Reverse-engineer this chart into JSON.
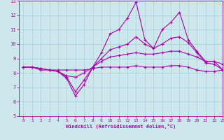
{
  "xlabel": "Windchill (Refroidissement éolien,°C)",
  "xlim": [
    -0.5,
    23
  ],
  "ylim": [
    5,
    13
  ],
  "xticks": [
    0,
    1,
    2,
    3,
    4,
    5,
    6,
    7,
    8,
    9,
    10,
    11,
    12,
    13,
    14,
    15,
    16,
    17,
    18,
    19,
    20,
    21,
    22,
    23
  ],
  "yticks": [
    5,
    6,
    7,
    8,
    9,
    10,
    11,
    12,
    13
  ],
  "background_color": "#cce8ec",
  "grid_color": "#aacfd4",
  "line_color": "#aa00aa",
  "series": [
    [
      8.4,
      8.4,
      8.2,
      8.2,
      8.1,
      7.6,
      6.4,
      7.2,
      8.4,
      9.4,
      10.7,
      11.0,
      11.8,
      12.9,
      10.3,
      9.7,
      11.0,
      11.5,
      12.2,
      10.3,
      9.5,
      8.8,
      8.8,
      8.2
    ],
    [
      8.4,
      8.4,
      8.3,
      8.2,
      8.1,
      7.7,
      6.7,
      7.5,
      8.4,
      9.0,
      9.6,
      9.8,
      10.0,
      10.5,
      10.0,
      9.7,
      10.0,
      10.4,
      10.5,
      10.1,
      9.4,
      8.7,
      8.6,
      8.2
    ],
    [
      8.4,
      8.4,
      8.3,
      8.2,
      8.1,
      7.8,
      7.7,
      8.0,
      8.4,
      8.8,
      9.1,
      9.2,
      9.3,
      9.4,
      9.3,
      9.3,
      9.4,
      9.5,
      9.5,
      9.3,
      9.1,
      8.8,
      8.8,
      8.6
    ],
    [
      8.4,
      8.4,
      8.3,
      8.2,
      8.2,
      8.2,
      8.2,
      8.2,
      8.3,
      8.4,
      8.4,
      8.4,
      8.4,
      8.5,
      8.4,
      8.4,
      8.4,
      8.5,
      8.5,
      8.4,
      8.2,
      8.1,
      8.1,
      8.2
    ]
  ]
}
